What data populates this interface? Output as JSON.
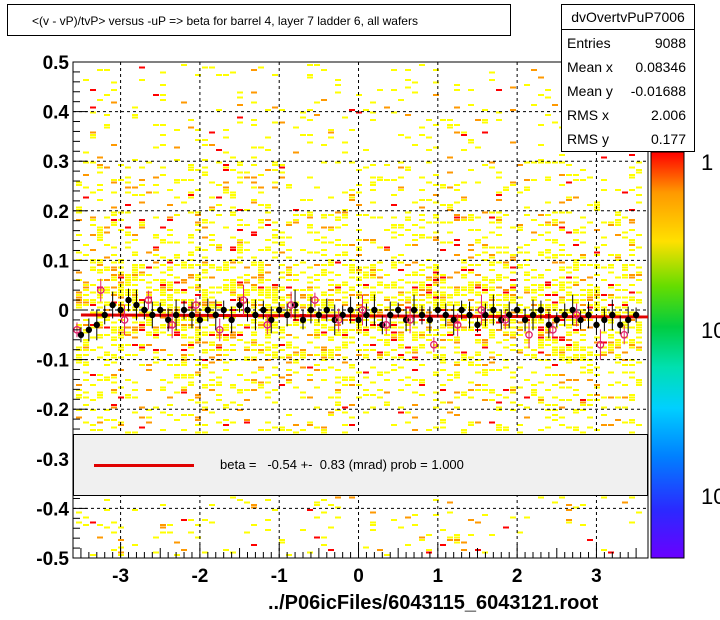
{
  "title": "<(v - vP)/tvP> versus  -uP => beta for barrel 4, layer 7 ladder 6, all wafers",
  "stats": {
    "name": "dvOvertvPuP7006",
    "rows": [
      {
        "label": "Entries",
        "value": "9088"
      },
      {
        "label": "Mean x",
        "value": "0.08346"
      },
      {
        "label": "Mean y",
        "value": "-0.01688"
      },
      {
        "label": "RMS x",
        "value": "2.006"
      },
      {
        "label": "RMS y",
        "value": "0.177"
      }
    ]
  },
  "legend": {
    "text": "beta =   -0.54 +-  0.83 (mrad) prob = 1.000"
  },
  "footer": "../P06icFiles/6043115_6043121.root",
  "colors": {
    "fit_line": "#e00000",
    "profile_markers": "#000000",
    "open_markers": "#e0206a",
    "hist_low": "#ffff00",
    "hist_mid": "#ff9900",
    "hist_high": "#ff0000"
  },
  "chart_data": {
    "type": "scatter",
    "title": "<(v - vP)/tvP> versus  -uP => beta for barrel 4, layer 7 ladder 6, all wafers",
    "xlabel": "",
    "ylabel": "",
    "xlim": [
      -3.6,
      3.65
    ],
    "ylim": [
      -0.5,
      0.5
    ],
    "x_ticks": [
      -3,
      -2,
      -1,
      0,
      1,
      2,
      3
    ],
    "y_ticks": [
      -0.5,
      -0.4,
      -0.3,
      -0.2,
      -0.1,
      0,
      0.1,
      0.2,
      0.3,
      0.4,
      0.5
    ],
    "x_tick_labels": [
      "-3",
      "-2",
      "-1",
      "0",
      "1",
      "2",
      "3"
    ],
    "y_tick_labels": [
      "-0.5",
      "-0.4",
      "-0.3",
      "-0.2",
      "-0.1",
      "0",
      "0.1",
      "0.2",
      "0.3",
      "0.4",
      "0.5"
    ],
    "grid": true,
    "colorbar_labels": [
      "1",
      "10",
      "10"
    ],
    "fit": {
      "slope": -0.00054,
      "intercept": -0.012
    },
    "series": [
      {
        "marker": "filled-circle",
        "color": "#000000",
        "x": [
          -3.5,
          -3.4,
          -3.3,
          -3.2,
          -3.1,
          -3.0,
          -2.9,
          -2.8,
          -2.7,
          -2.6,
          -2.5,
          -2.4,
          -2.3,
          -2.2,
          -2.1,
          -2.0,
          -1.9,
          -1.8,
          -1.7,
          -1.6,
          -1.5,
          -1.4,
          -1.3,
          -1.2,
          -1.1,
          -1.0,
          -0.9,
          -0.8,
          -0.7,
          -0.6,
          -0.5,
          -0.4,
          -0.3,
          -0.2,
          -0.1,
          0.0,
          0.1,
          0.2,
          0.3,
          0.4,
          0.5,
          0.6,
          0.7,
          0.8,
          0.9,
          1.0,
          1.1,
          1.2,
          1.3,
          1.4,
          1.5,
          1.6,
          1.7,
          1.8,
          1.9,
          2.0,
          2.1,
          2.2,
          2.3,
          2.4,
          2.5,
          2.6,
          2.7,
          2.8,
          2.9,
          3.0,
          3.1,
          3.2,
          3.3,
          3.4,
          3.5
        ],
        "y": [
          -0.05,
          -0.04,
          -0.03,
          -0.01,
          0.01,
          0.0,
          0.02,
          0.01,
          0.0,
          -0.01,
          0.0,
          -0.02,
          -0.01,
          0.0,
          -0.01,
          -0.02,
          0.0,
          -0.01,
          0.0,
          -0.02,
          0.01,
          0.0,
          -0.01,
          0.0,
          -0.02,
          0.0,
          -0.01,
          0.01,
          -0.02,
          0.0,
          -0.01,
          0.0,
          -0.02,
          -0.01,
          0.0,
          -0.02,
          -0.01,
          0.0,
          -0.03,
          -0.01,
          0.0,
          -0.02,
          0.0,
          -0.01,
          -0.02,
          0.0,
          -0.01,
          -0.02,
          0.0,
          -0.01,
          -0.03,
          -0.01,
          0.0,
          -0.02,
          -0.01,
          0.0,
          -0.02,
          -0.01,
          0.0,
          -0.03,
          -0.02,
          -0.01,
          0.0,
          -0.02,
          -0.01,
          -0.03,
          -0.02,
          -0.01,
          -0.03,
          -0.02,
          -0.01
        ]
      },
      {
        "marker": "open-circle",
        "color": "#e0206a",
        "x": [
          -3.55,
          -3.25,
          -2.95,
          -2.65,
          -2.35,
          -2.05,
          -1.75,
          -1.45,
          -1.15,
          -0.85,
          -0.55,
          -0.25,
          0.05,
          0.35,
          0.65,
          0.95,
          1.25,
          1.55,
          1.85,
          2.15,
          2.45,
          2.75,
          3.05,
          3.35
        ],
        "y": [
          -0.04,
          0.04,
          -0.02,
          0.02,
          -0.03,
          0.01,
          -0.04,
          0.02,
          -0.03,
          0.01,
          0.02,
          -0.02,
          0.0,
          -0.03,
          -0.02,
          -0.07,
          -0.03,
          0.0,
          -0.02,
          -0.05,
          -0.04,
          -0.01,
          -0.07,
          -0.05
        ]
      }
    ]
  }
}
